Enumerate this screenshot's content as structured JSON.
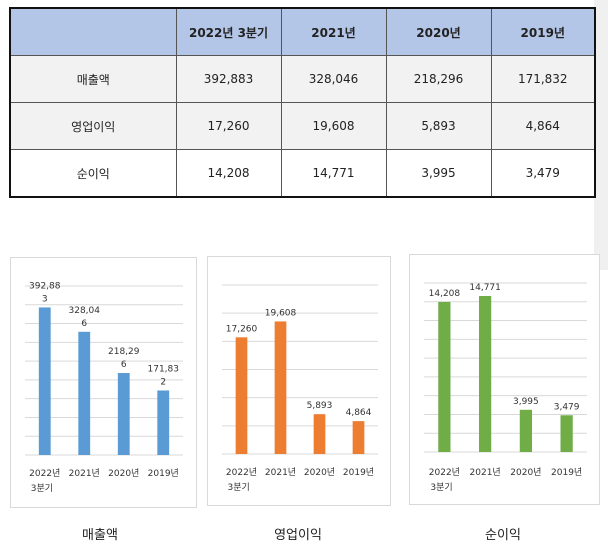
{
  "table": {
    "headers": [
      "",
      "2022년 3분기",
      "2021년",
      "2020년",
      "2019년"
    ],
    "rows": [
      {
        "label": "매출액",
        "values": [
          "392,883",
          "328,046",
          "218,296",
          "171,832"
        ]
      },
      {
        "label": "영업이익",
        "values": [
          "17,260",
          "19,608",
          "5,893",
          "4,864"
        ]
      },
      {
        "label": "순이익",
        "values": [
          "14,208",
          "14,771",
          "3,995",
          "3,479"
        ]
      }
    ]
  },
  "chart_data": [
    {
      "type": "bar",
      "caption": "매출액",
      "categories": [
        "2022년\n3분기",
        "2021년",
        "2020년",
        "2019년"
      ],
      "values": [
        392883,
        328046,
        218296,
        171832
      ],
      "data_labels": [
        "392,88\n3",
        "328,04\n6",
        "218,29\n6",
        "171,83\n2"
      ],
      "color": "#5b9bd5",
      "ylim": [
        0,
        450000
      ],
      "grid": true
    },
    {
      "type": "bar",
      "caption": "영업이익",
      "categories": [
        "2022년\n3분기",
        "2021년",
        "2020년",
        "2019년"
      ],
      "values": [
        17260,
        19608,
        5893,
        4864
      ],
      "data_labels": [
        "17,260",
        "19,608",
        "5,893",
        "4,864"
      ],
      "color": "#ed7d31",
      "ylim": [
        0,
        25000
      ],
      "grid": true
    },
    {
      "type": "bar",
      "caption": "순이익",
      "categories": [
        "2022년\n3분기",
        "2021년",
        "2020년",
        "2019년"
      ],
      "values": [
        14208,
        14771,
        3995,
        3479
      ],
      "data_labels": [
        "14,208",
        "14,771",
        "3,995",
        "3,479"
      ],
      "color": "#70ad47",
      "ylim": [
        0,
        16000
      ],
      "grid": true
    }
  ]
}
